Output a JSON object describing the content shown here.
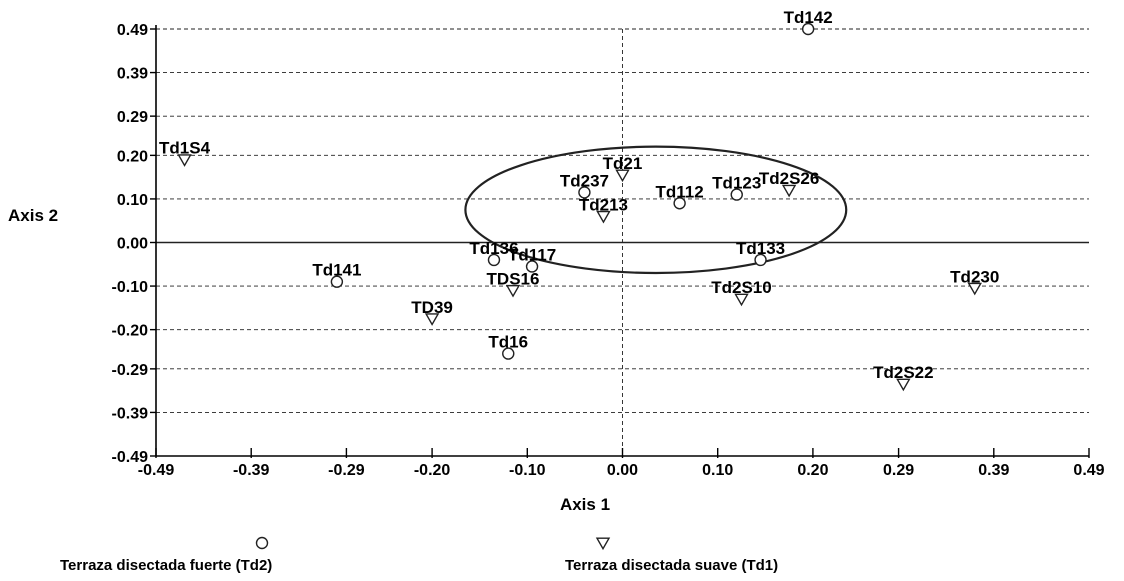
{
  "chart_data": {
    "type": "scatter",
    "title": "",
    "xlabel": "Axis 1",
    "ylabel": "Axis 2",
    "xlim": [
      -0.49,
      0.49
    ],
    "ylim": [
      -0.49,
      0.49
    ],
    "x_ticks": [
      "-0.49",
      "-0.39",
      "-0.29",
      "-0.20",
      "-0.10",
      "0.00",
      "0.10",
      "0.20",
      "0.29",
      "0.39",
      "0.49"
    ],
    "y_ticks": [
      "0.49",
      "0.39",
      "0.29",
      "0.20",
      "0.10",
      "0.00",
      "-0.10",
      "-0.20",
      "-0.29",
      "-0.39",
      "-0.49"
    ],
    "grid": "horizontal dashed lines at each y tick, dashed vertical line at x = 0",
    "legend_position": "bottom",
    "series": [
      {
        "name": "Terraza disectada  fuerte (Td2)",
        "marker": "circle",
        "points": [
          {
            "label": "Td142",
            "x": 0.195,
            "y": 0.49
          },
          {
            "label": "Td237",
            "x": -0.04,
            "y": 0.115
          },
          {
            "label": "Td112",
            "x": 0.06,
            "y": 0.09
          },
          {
            "label": "Td123",
            "x": 0.12,
            "y": 0.11
          },
          {
            "label": "Td136",
            "x": -0.135,
            "y": -0.04
          },
          {
            "label": "Td117",
            "x": -0.095,
            "y": -0.055
          },
          {
            "label": "Td133",
            "x": 0.145,
            "y": -0.04
          },
          {
            "label": "Td141",
            "x": -0.3,
            "y": -0.09
          },
          {
            "label": "Td16",
            "x": -0.12,
            "y": -0.255
          }
        ]
      },
      {
        "name": "Terraza disectada suave (Td1)",
        "marker": "triangle-down",
        "points": [
          {
            "label": "Td1S4",
            "x": -0.46,
            "y": 0.19
          },
          {
            "label": "Td21",
            "x": 0.0,
            "y": 0.155
          },
          {
            "label": "Td2S26",
            "x": 0.175,
            "y": 0.12
          },
          {
            "label": "Td213",
            "x": -0.02,
            "y": 0.06
          },
          {
            "label": "TDS16",
            "x": -0.115,
            "y": -0.11
          },
          {
            "label": "Td2S10",
            "x": 0.125,
            "y": -0.13
          },
          {
            "label": "Td230",
            "x": 0.37,
            "y": -0.105
          },
          {
            "label": "TD39",
            "x": -0.2,
            "y": -0.175
          },
          {
            "label": "Td2S22",
            "x": 0.295,
            "y": -0.325
          }
        ]
      }
    ],
    "annotations": [
      {
        "type": "ellipse",
        "center": [
          0.035,
          0.075
        ],
        "rx": 0.2,
        "ry": 0.145
      }
    ]
  }
}
